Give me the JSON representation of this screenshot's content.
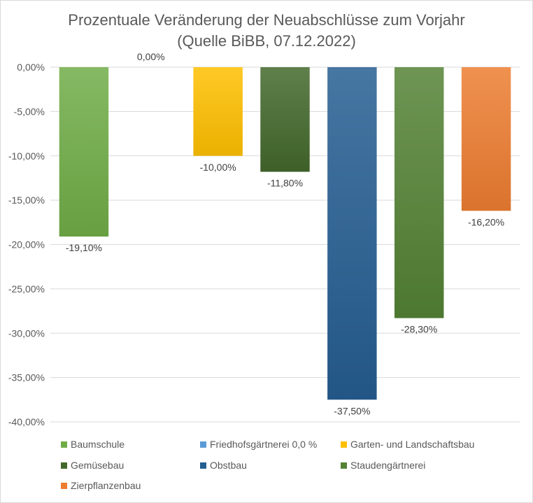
{
  "chart_data": {
    "type": "bar",
    "title": "Prozentuale Veränderung der Neuabschlüsse zum Vorjahr (Quelle BiBB, 07.12.2022)",
    "title_lines": [
      "Prozentuale Veränderung der Neuabschlüsse zum Vorjahr",
      "(Quelle BiBB, 07.12.2022)"
    ],
    "xlabel": "",
    "ylabel": "",
    "ylim": [
      -40,
      0
    ],
    "y_ticks": [
      0,
      -5,
      -10,
      -15,
      -20,
      -25,
      -30,
      -35,
      -40
    ],
    "y_tick_labels": [
      "0,00%",
      "-5,00%",
      "-10,00%",
      "-15,00%",
      "-20,00%",
      "-25,00%",
      "-30,00%",
      "-35,00%",
      "-40,00%"
    ],
    "grid": true,
    "legend_position": "bottom",
    "series": [
      {
        "name": "Baumschule",
        "value": -19.1,
        "label": "-19,10%",
        "color": "#70ad47"
      },
      {
        "name": "Friedhofsgärtnerei 0,0 %",
        "value": 0.0,
        "label": "0,00%",
        "color": "#5b9bd5"
      },
      {
        "name": "Garten- und Landschaftsbau",
        "value": -10.0,
        "label": "-10,00%",
        "color": "#ffc000"
      },
      {
        "name": "Gemüsebau",
        "value": -11.8,
        "label": "-11,80%",
        "color": "#43682b"
      },
      {
        "name": "Obstbau",
        "value": -37.5,
        "label": "-37,50%",
        "color": "#255e91"
      },
      {
        "name": "Staudengärtnerei",
        "value": -28.3,
        "label": "-28,30%",
        "color": "#548235"
      },
      {
        "name": "Zierpflanzenbau",
        "value": -16.2,
        "label": "-16,20%",
        "color": "#ed7d31"
      }
    ]
  }
}
